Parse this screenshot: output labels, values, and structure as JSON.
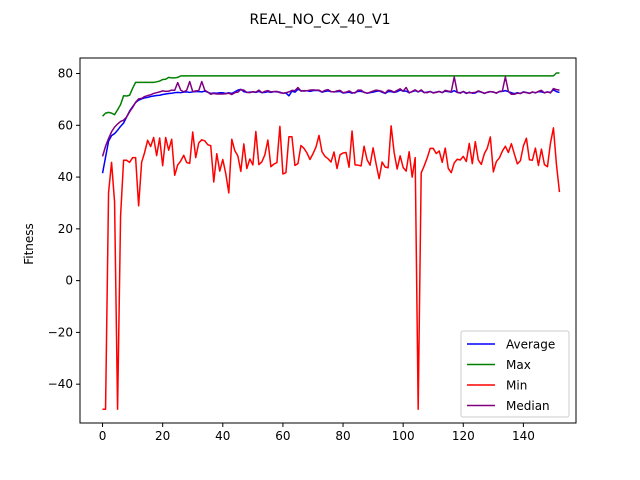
{
  "chart_data": {
    "type": "line",
    "title": "REAL_NO_CX_40_V1",
    "xlabel": "",
    "ylabel": "Fitness",
    "xlim": [
      -7.5,
      157.5
    ],
    "ylim": [
      -55,
      86
    ],
    "xticks": [
      0,
      20,
      40,
      60,
      80,
      100,
      120,
      140
    ],
    "yticks": [
      -40,
      -20,
      0,
      20,
      40,
      60,
      80
    ],
    "grid": false,
    "legend_position": "lower right",
    "series": [
      {
        "name": "Average",
        "color": "#0000ff",
        "values": [
          41.5,
          47.7,
          53.9,
          56.0,
          56.8,
          58.1,
          59.6,
          60.9,
          63.2,
          65.5,
          67.2,
          68.8,
          69.7,
          70.2,
          70.6,
          70.8,
          71.1,
          71.3,
          71.5,
          71.6,
          71.9,
          72.1,
          72.3,
          72.4,
          72.6,
          72.7,
          72.6,
          72.8,
          72.9,
          72.7,
          72.9,
          73.0,
          73.0,
          72.9,
          73.2,
          72.8,
          72.3,
          72.5,
          72.4,
          72.6,
          72.6,
          72.3,
          72.6,
          72.3,
          72.9,
          73.6,
          73.9,
          73.0,
          72.7,
          72.8,
          72.9,
          72.7,
          73.1,
          72.6,
          72.7,
          73.0,
          72.7,
          73.0,
          72.9,
          72.8,
          72.4,
          72.5,
          71.4,
          73.2,
          72.8,
          73.9,
          73.4,
          73.2,
          73.4,
          73.1,
          73.4,
          73.5,
          73.4,
          72.8,
          73.1,
          73.3,
          73.0,
          72.9,
          73.0,
          73.1,
          72.5,
          72.6,
          72.8,
          72.4,
          72.7,
          73.1,
          73.1,
          72.8,
          72.4,
          72.6,
          72.8,
          73.1,
          73.3,
          72.8,
          72.3,
          73.0,
          73.0,
          72.7,
          73.0,
          73.6,
          73.2,
          73.2,
          72.6,
          73.0,
          73.4,
          72.9,
          73.4,
          72.6,
          72.8,
          73.0,
          72.6,
          72.8,
          73.0,
          72.7,
          73.2,
          73.0,
          72.8,
          73.4,
          72.7,
          72.6,
          73.0,
          72.3,
          72.8,
          72.4,
          72.5,
          73.1,
          72.8,
          72.4,
          72.7,
          73.0,
          72.8,
          72.5,
          73.0,
          73.1,
          73.4,
          73.0,
          72.6,
          72.2,
          72.6,
          72.3,
          72.9,
          72.7,
          72.4,
          72.8,
          72.6,
          73.0,
          72.9,
          72.6,
          72.9,
          72.7,
          73.7,
          73.0,
          72.7
        ],
        "x_start": 0
      },
      {
        "name": "Max",
        "color": "#008000",
        "values": [
          63.5,
          64.7,
          65.0,
          64.7,
          64.1,
          66.0,
          68.0,
          71.4,
          71.3,
          71.6,
          74.3,
          76.6,
          76.6,
          76.6,
          76.6,
          76.6,
          76.6,
          76.6,
          76.8,
          77.1,
          77.7,
          77.8,
          78.5,
          78.3,
          78.3,
          78.5,
          79.1,
          79.1,
          79.1,
          79.1,
          79.1,
          79.1,
          79.1,
          79.1,
          79.1,
          79.1,
          79.1,
          79.1,
          79.1,
          79.1,
          79.1,
          79.1,
          79.1,
          79.1,
          79.1,
          79.1,
          79.1,
          79.1,
          79.1,
          79.1,
          79.1,
          79.1,
          79.1,
          79.1,
          79.1,
          79.1,
          79.1,
          79.1,
          79.1,
          79.1,
          79.1,
          79.1,
          79.1,
          79.1,
          79.1,
          79.1,
          79.1,
          79.1,
          79.1,
          79.1,
          79.1,
          79.1,
          79.1,
          79.1,
          79.1,
          79.1,
          79.1,
          79.1,
          79.1,
          79.1,
          79.1,
          79.1,
          79.1,
          79.1,
          79.1,
          79.1,
          79.1,
          79.1,
          79.1,
          79.1,
          79.1,
          79.1,
          79.1,
          79.1,
          79.1,
          79.1,
          79.1,
          79.1,
          79.1,
          79.1,
          79.1,
          79.1,
          79.1,
          79.1,
          79.1,
          79.1,
          79.1,
          79.1,
          79.1,
          79.1,
          79.1,
          79.1,
          79.1,
          79.1,
          79.1,
          79.1,
          79.1,
          79.1,
          79.1,
          79.1,
          79.1,
          79.1,
          79.1,
          79.1,
          79.1,
          79.1,
          79.1,
          79.1,
          79.1,
          79.1,
          79.1,
          79.1,
          79.1,
          79.1,
          79.1,
          79.1,
          79.1,
          79.1,
          79.1,
          79.1,
          79.1,
          79.1,
          79.1,
          79.1,
          79.1,
          79.1,
          79.1,
          79.1,
          79.1,
          79.1,
          79.1,
          80.2,
          80.2
        ],
        "x_start": 0
      },
      {
        "name": "Min",
        "color": "#ff0000",
        "values": [
          -49.7,
          -49.7,
          34.0,
          45.7,
          30.4,
          -49.7,
          25.0,
          46.5,
          46.5,
          45.7,
          47.5,
          47.5,
          28.9,
          45.7,
          49.5,
          54.2,
          51.8,
          55.3,
          48.3,
          55.1,
          44.4,
          55.3,
          50.4,
          54.6,
          40.7,
          44.7,
          46.2,
          48.4,
          45.6,
          45.3,
          57.4,
          47.5,
          53.2,
          54.4,
          54.0,
          52.5,
          52.1,
          38.1,
          49.0,
          42.3,
          46.8,
          41.3,
          33.9,
          54.6,
          50.2,
          48.2,
          42.2,
          52.8,
          43.3,
          47.0,
          44.7,
          57.6,
          44.8,
          45.9,
          48.6,
          54.3,
          44.0,
          45.0,
          45.6,
          59.6,
          41.2,
          41.7,
          55.6,
          55.6,
          44.5,
          45.2,
          52.2,
          51.1,
          49.3,
          46.8,
          49.0,
          51.6,
          56.1,
          49.8,
          48.0,
          47.1,
          45.8,
          49.7,
          43.3,
          48.6,
          49.3,
          49.5,
          43.8,
          57.8,
          44.7,
          44.6,
          44.3,
          51.9,
          46.7,
          44.6,
          51.3,
          45.1,
          39.4,
          45.8,
          43.9,
          43.6,
          59.8,
          49.5,
          43.1,
          48.2,
          43.7,
          42.3,
          49.8,
          40.0,
          47.5,
          -49.7,
          41.6,
          44.3,
          47.4,
          51.1,
          51.1,
          49.1,
          50.1,
          45.7,
          51.2,
          43.4,
          41.7,
          45.5,
          46.9,
          46.6,
          48.0,
          46.0,
          53.0,
          45.2,
          53.7,
          46.6,
          44.9,
          49.0,
          51.2,
          55.5,
          42.0,
          46.0,
          47.4,
          50.0,
          51.9,
          49.5,
          52.9,
          48.9,
          45.1,
          46.3,
          52.0,
          55.0,
          46.7,
          46.5,
          51.2,
          44.5,
          50.8,
          44.8,
          44.0,
          53.1,
          59.0,
          44.8,
          34.2
        ],
        "x_start": 0
      },
      {
        "name": "Median",
        "color": "#800080",
        "values": [
          48.0,
          51.9,
          54.9,
          57.5,
          59.3,
          60.5,
          61.5,
          62.0,
          63.2,
          65.2,
          66.9,
          68.9,
          70.2,
          70.4,
          71.1,
          71.5,
          71.8,
          72.3,
          72.6,
          72.9,
          73.3,
          73.1,
          73.2,
          73.6,
          73.5,
          76.5,
          73.6,
          72.9,
          73.6,
          76.9,
          73.0,
          73.3,
          73.4,
          76.9,
          73.6,
          72.8,
          72.0,
          72.3,
          72.1,
          72.1,
          72.1,
          72.2,
          72.4,
          71.9,
          72.6,
          72.8,
          73.8,
          73.6,
          72.7,
          72.6,
          73.0,
          72.8,
          73.6,
          72.6,
          73.1,
          73.4,
          72.9,
          73.0,
          73.1,
          72.6,
          72.4,
          72.6,
          72.9,
          73.5,
          73.4,
          74.6,
          73.2,
          73.4,
          73.3,
          73.6,
          73.7,
          73.6,
          73.6,
          72.9,
          73.5,
          73.8,
          73.0,
          72.9,
          73.3,
          73.5,
          72.6,
          72.8,
          73.3,
          72.6,
          72.5,
          73.6,
          73.6,
          72.7,
          72.4,
          72.8,
          73.2,
          73.6,
          73.4,
          73.1,
          72.4,
          73.6,
          73.4,
          72.8,
          73.5,
          74.1,
          73.2,
          74.6,
          72.5,
          73.1,
          73.7,
          72.9,
          73.7,
          72.7,
          72.6,
          73.1,
          72.5,
          72.7,
          73.1,
          72.6,
          73.5,
          73.2,
          73.0,
          78.7,
          72.7,
          72.4,
          73.1,
          72.5,
          72.6,
          72.6,
          72.7,
          73.3,
          72.9,
          72.3,
          72.8,
          73.0,
          72.9,
          72.4,
          73.1,
          73.2,
          78.7,
          73.1,
          72.0,
          72.0,
          72.4,
          72.3,
          72.8,
          72.6,
          72.3,
          72.9,
          72.5,
          73.1,
          73.5,
          72.5,
          72.9,
          72.5,
          74.2,
          73.8,
          73.6
        ]
      }
    ]
  }
}
